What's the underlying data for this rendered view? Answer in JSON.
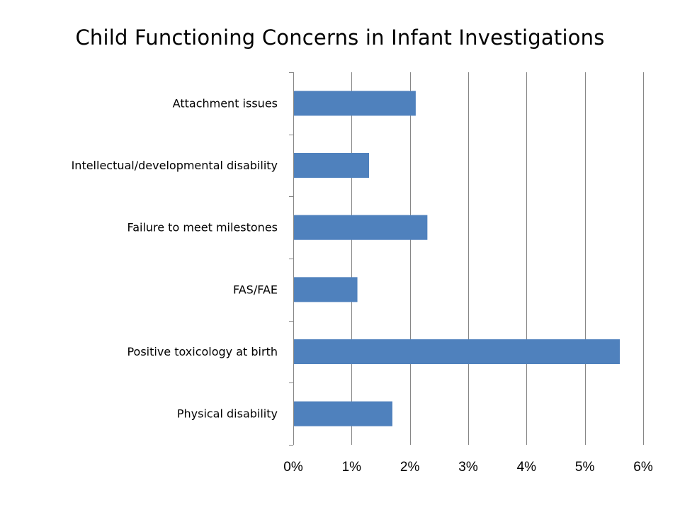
{
  "chart_data": {
    "type": "bar",
    "orientation": "horizontal",
    "title": "Child Functioning Concerns in Infant Investigations",
    "categories": [
      "Attachment issues",
      "Intellectual/developmental disability",
      "Failure to meet milestones",
      "FAS/FAE",
      "Positive toxicology at birth",
      "Physical disability"
    ],
    "values": [
      2.1,
      1.3,
      2.3,
      1.1,
      5.6,
      1.7
    ],
    "xlim": [
      0,
      6
    ],
    "x_ticks": [
      0,
      1,
      2,
      3,
      4,
      5,
      6
    ],
    "x_tick_labels": [
      "0%",
      "1%",
      "2%",
      "3%",
      "4%",
      "5%",
      "6%"
    ],
    "xlabel": "",
    "ylabel": "",
    "grid": "vertical",
    "legend": "none",
    "colors": {
      "bar": "#4F81BD",
      "grid": "#868686",
      "axis": "#868686"
    }
  }
}
